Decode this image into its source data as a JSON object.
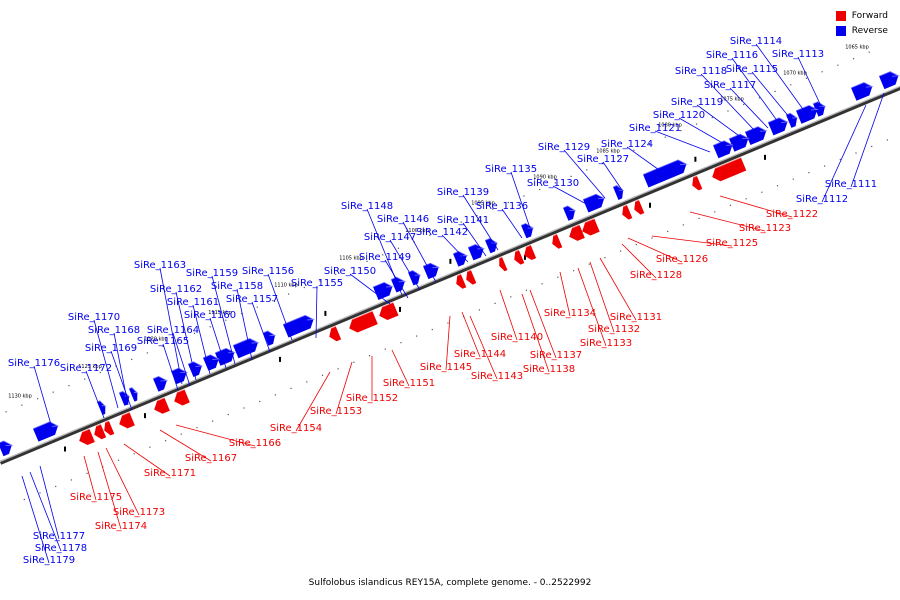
{
  "legend": [
    {
      "label": "Forward",
      "color": "#ee0000"
    },
    {
      "label": "Reverse",
      "color": "#0000ee"
    }
  ],
  "caption": "Sulfolobus islandicus REY15A, complete genome. - 0..2522992",
  "colors": {
    "forward": "#ee0000",
    "reverse": "#0000ee",
    "backbone": "#666666"
  },
  "scale_labels": [
    "1065 kbp",
    "1070 kbp",
    "1075 kbp",
    "1080 kbp",
    "1085 kbp",
    "1090 kbp",
    "1095 kbp",
    "1100 kbp",
    "1105 kbp",
    "1110 kbp",
    "1115 kbp",
    "1120 kbp",
    "1125 kbp",
    "1130 kbp"
  ],
  "genes_reverse": [
    "SiRe_1111",
    "SiRe_1112",
    "SiRe_1113",
    "SiRe_1114",
    "SiRe_1115",
    "SiRe_1116",
    "SiRe_1117",
    "SiRe_1118",
    "SiRe_1119",
    "SiRe_1120",
    "SiRe_1121",
    "SiRe_1124",
    "SiRe_1127",
    "SiRe_1129",
    "SiRe_1130",
    "SiRe_1135",
    "SiRe_1136",
    "SiRe_1139",
    "SiRe_1141",
    "SiRe_1142",
    "SiRe_1146",
    "SiRe_1147",
    "SiRe_1148",
    "SiRe_1149",
    "SiRe_1150",
    "SiRe_1155",
    "SiRe_1156",
    "SiRe_1157",
    "SiRe_1158",
    "SiRe_1159",
    "SiRe_1160",
    "SiRe_1161",
    "SiRe_1162",
    "SiRe_1163",
    "SiRe_1164",
    "SiRe_1165",
    "SiRe_1168",
    "SiRe_1169",
    "SiRe_1170",
    "SiRe_1172",
    "SiRe_1176",
    "SiRe_1177",
    "SiRe_1178",
    "SiRe_1179"
  ],
  "genes_forward": [
    "SiRe_1122",
    "SiRe_1123",
    "SiRe_1125",
    "SiRe_1126",
    "SiRe_1128",
    "SiRe_1131",
    "SiRe_1132",
    "SiRe_1133",
    "SiRe_1134",
    "SiRe_1137",
    "SiRe_1138",
    "SiRe_1140",
    "SiRe_1143",
    "SiRe_1144",
    "SiRe_1145",
    "SiRe_1151",
    "SiRe_1152",
    "SiRe_1153",
    "SiRe_1154",
    "SiRe_1166",
    "SiRe_1167",
    "SiRe_1171",
    "SiRe_1173",
    "SiRe_1174",
    "SiRe_1175"
  ]
}
